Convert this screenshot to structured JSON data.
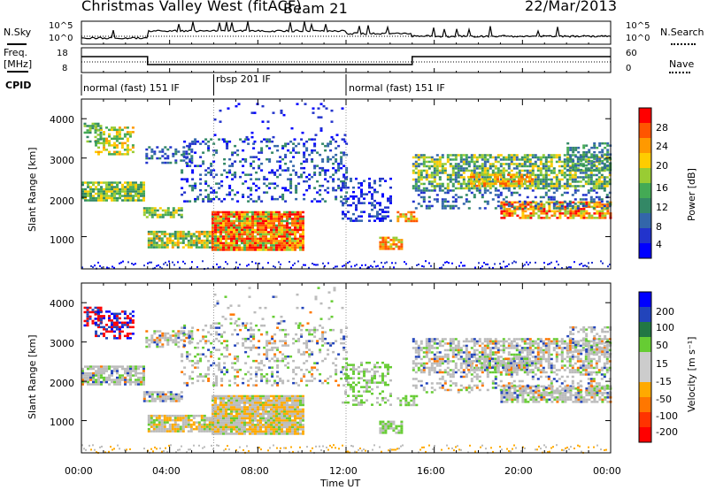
{
  "header": {
    "station": "Christmas Valley West (fitACF)",
    "beam": "Beam 21",
    "date": "22/Mar/2013"
  },
  "top_panels": {
    "nsky_label": "N.Sky",
    "nsky_ticks": [
      "10^5",
      "10^0"
    ],
    "nsearch_label": "N.Search",
    "nsearch_ticks": [
      "10^5",
      "10^0"
    ],
    "freq_label_1": "Freq.",
    "freq_label_2": "[MHz]",
    "freq_ticks": [
      "18",
      "8"
    ],
    "nave_label": "Nave",
    "nave_ticks": [
      "60",
      "0"
    ],
    "cpid_label": "CPID"
  },
  "cpid_segments": [
    {
      "label": "normal (fast) 151 IF",
      "start_hour": 0,
      "end_hour": 6
    },
    {
      "label": "rbsp 201 IF",
      "start_hour": 6,
      "end_hour": 12
    },
    {
      "label": "normal (fast) 151 IF",
      "start_hour": 12,
      "end_hour": 24
    }
  ],
  "chart_data": [
    {
      "type": "heatmap",
      "ylabel": "Slant Range [km]",
      "xlabel": "Time UT",
      "x_ticks": [
        "00:00",
        "04:00",
        "08:00",
        "12:00",
        "16:00",
        "20:00",
        "00:00"
      ],
      "y_ticks": [
        "1000",
        "2000",
        "3000",
        "4000"
      ],
      "xlim_hours": [
        0,
        24
      ],
      "ylim_km": [
        180,
        4500
      ],
      "colorbar": {
        "label": "Power [dB]",
        "ticks": [
          "28",
          "24",
          "20",
          "16",
          "12",
          "8",
          "4"
        ],
        "colors": [
          "#ff0000",
          "#ff5500",
          "#ff9900",
          "#ffcc00",
          "#99cc33",
          "#44aa55",
          "#338866",
          "#3366aa",
          "#2233cc",
          "#0000ff"
        ]
      }
    },
    {
      "type": "heatmap",
      "ylabel": "Slant Range [km]",
      "xlabel": "Time UT",
      "x_ticks": [
        "00:00",
        "04:00",
        "08:00",
        "12:00",
        "16:00",
        "20:00",
        "00:00"
      ],
      "y_ticks": [
        "1000",
        "2000",
        "3000",
        "4000"
      ],
      "xlim_hours": [
        0,
        24
      ],
      "ylim_km": [
        180,
        4500
      ],
      "colorbar": {
        "label": "Velocity [m s⁻¹]",
        "ticks": [
          "200",
          "100",
          "50",
          "15",
          "-15",
          "-50",
          "-100",
          "-200"
        ],
        "colors": [
          "#0000ff",
          "#2244bb",
          "#227744",
          "#66cc33",
          "#cccccc",
          "#cccccc",
          "#ffaa00",
          "#ff7700",
          "#ff3300",
          "#ff0000"
        ]
      }
    }
  ],
  "ground_scatter_color": "#bbbbbb"
}
